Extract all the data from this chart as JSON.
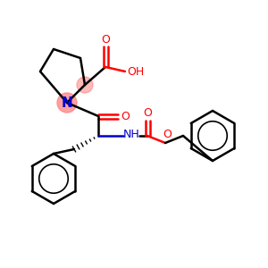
{
  "background": "#ffffff",
  "atom_colors": {
    "O": "#ff0000",
    "N": "#0000cc",
    "C": "#000000"
  },
  "highlight_color": "#ff8080",
  "lw": 1.8
}
